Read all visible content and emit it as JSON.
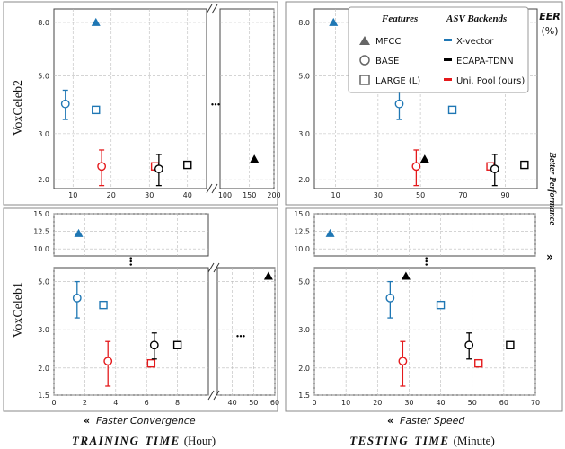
{
  "figure": {
    "row_labels": [
      "VoxCeleb2",
      "VoxCeleb1"
    ],
    "eer_label": "EER",
    "eer_unit": "(%)",
    "side_label": "Better Performance",
    "bottom_left_sub": "Faster Convergence",
    "bottom_left_main": "TRAINING",
    "bottom_left_main2": "TIME",
    "bottom_left_unit": "(Hour)",
    "bottom_right_sub": "Faster Speed",
    "bottom_right_main": "TESTING",
    "bottom_right_main2": "TIME",
    "bottom_right_unit": "(Minute)",
    "ellipsis": "•••"
  },
  "legend": {
    "features_title": "Features",
    "backends_title": "ASV Backends",
    "features": [
      {
        "label": "MFCC",
        "marker": "triangle"
      },
      {
        "label": "BASE",
        "marker": "circle"
      },
      {
        "label": "LARGE (L)",
        "marker": "square"
      }
    ],
    "backends": [
      {
        "label": "X-vector",
        "color": "#1f77b4"
      },
      {
        "label": "ECAPA-TDNN",
        "color": "#000000"
      },
      {
        "label": "Uni. Pool (ours)",
        "color": "#e41a1c"
      }
    ]
  },
  "colors": {
    "xvector": "#1f77b4",
    "ecapa": "#000000",
    "unipool": "#e41a1c",
    "grid": "#bbbbbb"
  },
  "chart_data": [
    {
      "id": "train-vox2",
      "type": "scatter",
      "x_ticks_main": [
        "10",
        "20",
        "30",
        "40"
      ],
      "x_ticks_break": [
        "100",
        "150",
        "200"
      ],
      "y_ticks": [
        "2.0",
        "3.0",
        "5.0",
        "8.0"
      ],
      "points": [
        {
          "x": 16,
          "y": 8.0,
          "err": 0,
          "marker": "triangle",
          "color": "xvector",
          "filled": true
        },
        {
          "x": 8,
          "y": 3.9,
          "err": 0.5,
          "marker": "circle",
          "color": "xvector",
          "filled": false
        },
        {
          "x": 16,
          "y": 3.7,
          "err": 0,
          "marker": "square",
          "color": "xvector",
          "filled": false
        },
        {
          "x": 17.5,
          "y": 2.25,
          "err": 0.35,
          "marker": "circle",
          "color": "unipool",
          "filled": false
        },
        {
          "x": 31.5,
          "y": 2.25,
          "err": 0,
          "marker": "square",
          "color": "unipool",
          "filled": false
        },
        {
          "x": 32.5,
          "y": 2.2,
          "err": 0.3,
          "marker": "circle",
          "color": "ecapa",
          "filled": false
        },
        {
          "x": 40,
          "y": 2.28,
          "err": 0,
          "marker": "square",
          "color": "ecapa",
          "filled": false
        },
        {
          "x": 160,
          "y": 2.4,
          "err": 0,
          "marker": "triangle",
          "color": "ecapa",
          "filled": true
        }
      ]
    },
    {
      "id": "test-vox2",
      "type": "scatter",
      "x_ticks": [
        "10",
        "30",
        "50",
        "70",
        "90"
      ],
      "y_ticks": [
        "2.0",
        "3.0",
        "5.0",
        "8.0"
      ],
      "points": [
        {
          "x": 9,
          "y": 8.0,
          "err": 0,
          "marker": "triangle",
          "color": "xvector",
          "filled": true
        },
        {
          "x": 40,
          "y": 3.9,
          "err": 0.5,
          "marker": "circle",
          "color": "xvector",
          "filled": false
        },
        {
          "x": 65,
          "y": 3.7,
          "err": 0,
          "marker": "square",
          "color": "xvector",
          "filled": false
        },
        {
          "x": 48,
          "y": 2.25,
          "err": 0.35,
          "marker": "circle",
          "color": "unipool",
          "filled": false
        },
        {
          "x": 83,
          "y": 2.25,
          "err": 0,
          "marker": "square",
          "color": "unipool",
          "filled": false
        },
        {
          "x": 85,
          "y": 2.2,
          "err": 0.3,
          "marker": "circle",
          "color": "ecapa",
          "filled": false
        },
        {
          "x": 99,
          "y": 2.28,
          "err": 0,
          "marker": "square",
          "color": "ecapa",
          "filled": false
        },
        {
          "x": 52,
          "y": 2.4,
          "err": 0,
          "marker": "triangle",
          "color": "ecapa",
          "filled": true
        }
      ]
    },
    {
      "id": "train-vox1",
      "type": "scatter",
      "x_ticks_main": [
        "0",
        "2",
        "4",
        "6",
        "8"
      ],
      "x_ticks_break": [
        "40",
        "50",
        "60"
      ],
      "y_ticks_low": [
        "1.5",
        "2.0",
        "3.0",
        "5.0"
      ],
      "y_ticks_high": [
        "10.0",
        "12.5",
        "15.0"
      ],
      "points": [
        {
          "x": 1.6,
          "y": 12.2,
          "err": 0,
          "marker": "triangle",
          "color": "xvector",
          "filled": true
        },
        {
          "x": 1.5,
          "y": 4.2,
          "err": 0.8,
          "marker": "circle",
          "color": "xvector",
          "filled": false
        },
        {
          "x": 3.2,
          "y": 3.9,
          "err": 0,
          "marker": "square",
          "color": "xvector",
          "filled": false
        },
        {
          "x": 3.5,
          "y": 2.15,
          "err": 0.5,
          "marker": "circle",
          "color": "unipool",
          "filled": false
        },
        {
          "x": 6.3,
          "y": 2.1,
          "err": 0,
          "marker": "square",
          "color": "unipool",
          "filled": false
        },
        {
          "x": 6.5,
          "y": 2.55,
          "err": 0.35,
          "marker": "circle",
          "color": "ecapa",
          "filled": false
        },
        {
          "x": 8.0,
          "y": 2.55,
          "err": 0,
          "marker": "square",
          "color": "ecapa",
          "filled": false
        },
        {
          "x": 57,
          "y": 5.3,
          "err": 0,
          "marker": "triangle",
          "color": "ecapa",
          "filled": true
        }
      ]
    },
    {
      "id": "test-vox1",
      "type": "scatter",
      "x_ticks": [
        "0",
        "10",
        "20",
        "30",
        "40",
        "50",
        "60",
        "70"
      ],
      "y_ticks_low": [
        "1.5",
        "2.0",
        "3.0",
        "5.0"
      ],
      "y_ticks_high": [
        "10.0",
        "12.5",
        "15.0"
      ],
      "points": [
        {
          "x": 5,
          "y": 12.2,
          "err": 0,
          "marker": "triangle",
          "color": "xvector",
          "filled": true
        },
        {
          "x": 24,
          "y": 4.2,
          "err": 0.8,
          "marker": "circle",
          "color": "xvector",
          "filled": false
        },
        {
          "x": 40,
          "y": 3.9,
          "err": 0,
          "marker": "square",
          "color": "xvector",
          "filled": false
        },
        {
          "x": 28,
          "y": 2.15,
          "err": 0.5,
          "marker": "circle",
          "color": "unipool",
          "filled": false
        },
        {
          "x": 52,
          "y": 2.1,
          "err": 0,
          "marker": "square",
          "color": "unipool",
          "filled": false
        },
        {
          "x": 49,
          "y": 2.55,
          "err": 0.35,
          "marker": "circle",
          "color": "ecapa",
          "filled": false
        },
        {
          "x": 62,
          "y": 2.55,
          "err": 0,
          "marker": "square",
          "color": "ecapa",
          "filled": false
        },
        {
          "x": 29,
          "y": 5.3,
          "err": 0,
          "marker": "triangle",
          "color": "ecapa",
          "filled": true
        }
      ]
    }
  ]
}
